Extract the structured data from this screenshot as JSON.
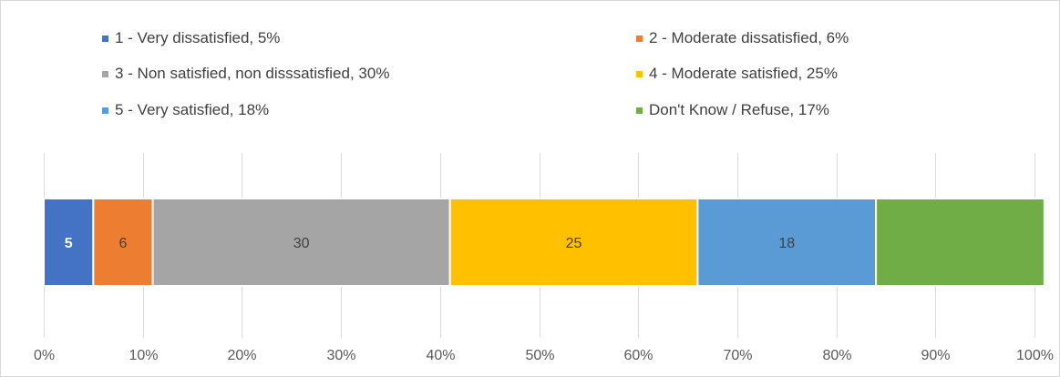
{
  "chart_data": {
    "type": "bar",
    "orientation": "horizontal-stacked-100",
    "title": "",
    "xlabel": "",
    "ylabel": "",
    "xlim": [
      0,
      100
    ],
    "grid": true,
    "legend_position": "top",
    "x_ticks": [
      "0%",
      "10%",
      "20%",
      "30%",
      "40%",
      "50%",
      "60%",
      "70%",
      "80%",
      "90%",
      "100%"
    ],
    "series": [
      {
        "name": "1 - Very dissatisfied, 5%",
        "value": 5,
        "label": "5",
        "color": "#4472c4",
        "label_color": "#ffffff"
      },
      {
        "name": "2 - Moderate dissatisfied, 6%",
        "value": 6,
        "label": "6",
        "color": "#ed7d31",
        "label_color": "#404040"
      },
      {
        "name": "3 - Non satisfied, non disssatisfied, 30%",
        "value": 30,
        "label": "30",
        "color": "#a5a5a5",
        "label_color": "#404040"
      },
      {
        "name": "4 - Moderate satisfied, 25%",
        "value": 25,
        "label": "25",
        "color": "#ffc000",
        "label_color": "#404040"
      },
      {
        "name": "5 - Very satisfied, 18%",
        "value": 18,
        "label": "18",
        "color": "#5b9bd5",
        "label_color": "#404040"
      },
      {
        "name": "Don't Know / Refuse, 17%",
        "value": 17,
        "label": "",
        "color": "#70ad47",
        "label_color": "#404040"
      }
    ]
  }
}
